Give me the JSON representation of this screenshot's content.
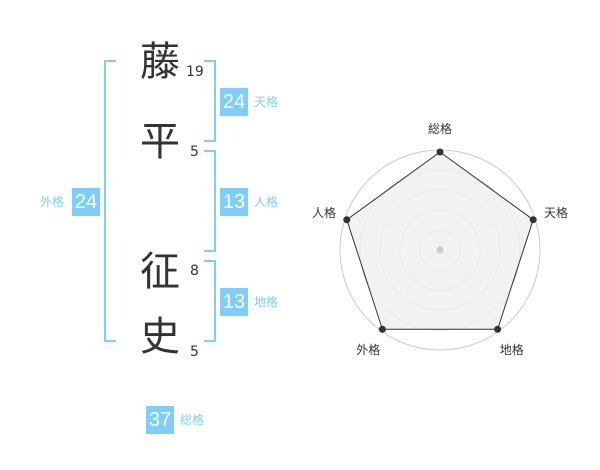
{
  "name": {
    "chars": [
      {
        "char": "藤",
        "strokes": "19"
      },
      {
        "char": "平",
        "strokes": "5"
      },
      {
        "char": "征",
        "strokes": "8"
      },
      {
        "char": "史",
        "strokes": "5"
      }
    ]
  },
  "fortunes": {
    "tenkaku": {
      "value": "24",
      "label": "天格"
    },
    "jinkaku": {
      "value": "13",
      "label": "人格"
    },
    "chikaku": {
      "value": "13",
      "label": "地格"
    },
    "gaikaku": {
      "value": "24",
      "label": "外格"
    },
    "soukaku": {
      "value": "37",
      "label": "総格"
    }
  },
  "accent_color": "#7fcdfc",
  "chart_data": {
    "type": "radar",
    "categories": [
      "総格",
      "天格",
      "地格",
      "外格",
      "人格"
    ],
    "values": [
      5,
      5,
      5,
      5,
      5
    ],
    "rmax": 5,
    "rings": 5
  }
}
